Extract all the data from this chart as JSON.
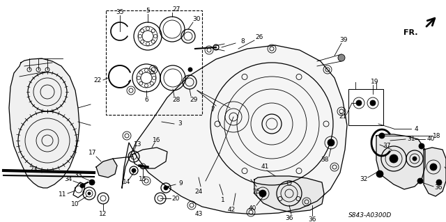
{
  "bg_color": "#ffffff",
  "diagram_code": "S843-A0300D",
  "fig_width": 6.4,
  "fig_height": 3.19,
  "dpi": 100,
  "labels": {
    "fr": "FR.",
    "code": "S843-A0300D"
  }
}
